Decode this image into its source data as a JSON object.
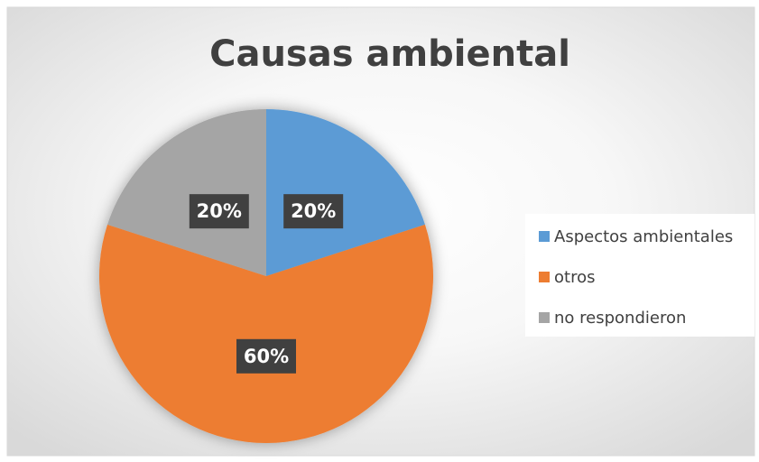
{
  "chart_data": {
    "type": "pie",
    "title": "Causas ambiental",
    "categories": [
      "Aspectos ambientales",
      "otros",
      "no respondieron"
    ],
    "values": [
      20,
      60,
      20
    ],
    "value_labels": [
      "20%",
      "60%",
      "20%"
    ],
    "colors": [
      "#5b9bd5",
      "#ed7d31",
      "#a5a5a5"
    ],
    "legend": "right"
  }
}
